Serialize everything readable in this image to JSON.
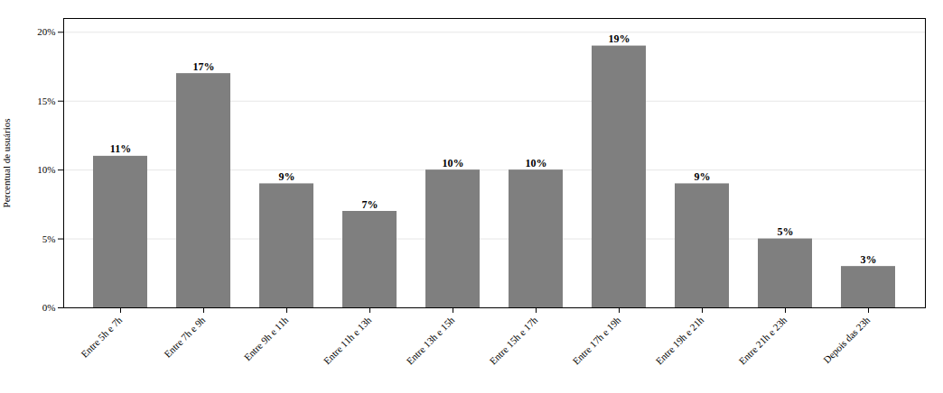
{
  "chart_data": {
    "type": "bar",
    "categories": [
      "Entre 5h e 7h",
      "Entre 7h e 9h",
      "Entre 9h e 11h",
      "Entre 11h e 13h",
      "Entre 13h e 15h",
      "Entre 15h e 17h",
      "Entre 17h e 19h",
      "Entre 19h e 21h",
      "Entre 21h e 23h",
      "Depois das 23h"
    ],
    "values": [
      11,
      17,
      9,
      7,
      10,
      10,
      19,
      9,
      5,
      3
    ],
    "value_labels": [
      "11%",
      "17%",
      "9%",
      "7%",
      "10%",
      "10%",
      "19%",
      "9%",
      "5%",
      "3%"
    ],
    "data_labels": true,
    "color": "#7f7f7f",
    "ylabel": "Percentual de usuários",
    "ylim": [
      0,
      21
    ],
    "yticks": [
      {
        "value": 0,
        "label": "0%"
      },
      {
        "value": 5,
        "label": "5%"
      },
      {
        "value": 10,
        "label": "10%"
      },
      {
        "value": 15,
        "label": "15%"
      },
      {
        "value": 20,
        "label": "20%"
      }
    ],
    "grid": true
  }
}
